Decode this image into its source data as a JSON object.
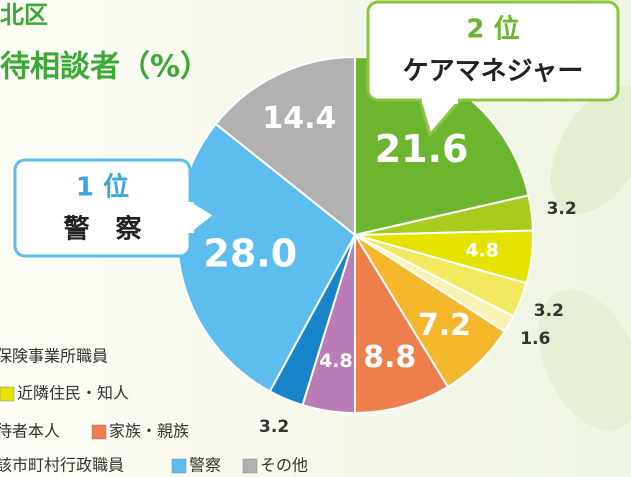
{
  "chart_data": {
    "type": "pie",
    "title": "北区",
    "subtitle": "待相談者（%）",
    "values": [
      21.6,
      3.2,
      4.8,
      3.2,
      1.6,
      7.2,
      8.8,
      4.8,
      3.2,
      28.0,
      14.4
    ],
    "value_labels": [
      "21.6",
      "3.2",
      "4.8",
      "3.2",
      "1.6",
      "7.2",
      "8.8",
      "4.8",
      "3.2",
      "28.0",
      "14.4"
    ],
    "colors": [
      "#6cb52f",
      "#a9cb1d",
      "#e6e200",
      "#f1ea5e",
      "#f8f3b4",
      "#f4b62b",
      "#ee7e4b",
      "#b97cb6",
      "#1884cb",
      "#5cbdee",
      "#b1b1b1"
    ],
    "annotations": [
      {
        "rank": "2 位",
        "label": "ケアマネジャー",
        "color": "#8cc63f"
      },
      {
        "rank": "1 位",
        "label": "警　察",
        "color": "#5cbdee"
      }
    ],
    "legend": [
      {
        "name": "保険事業所職員",
        "color": null
      },
      {
        "name": "近隣住民・知人",
        "color": "#e6e200"
      },
      {
        "name": "待者本人",
        "color": null
      },
      {
        "name": "家族・親族",
        "color": "#ee7e4b"
      },
      {
        "name": "該市町村行政職員",
        "color": null
      },
      {
        "name": "警察",
        "color": "#5cbdee"
      },
      {
        "name": "その他",
        "color": "#b1b1b1"
      }
    ]
  }
}
